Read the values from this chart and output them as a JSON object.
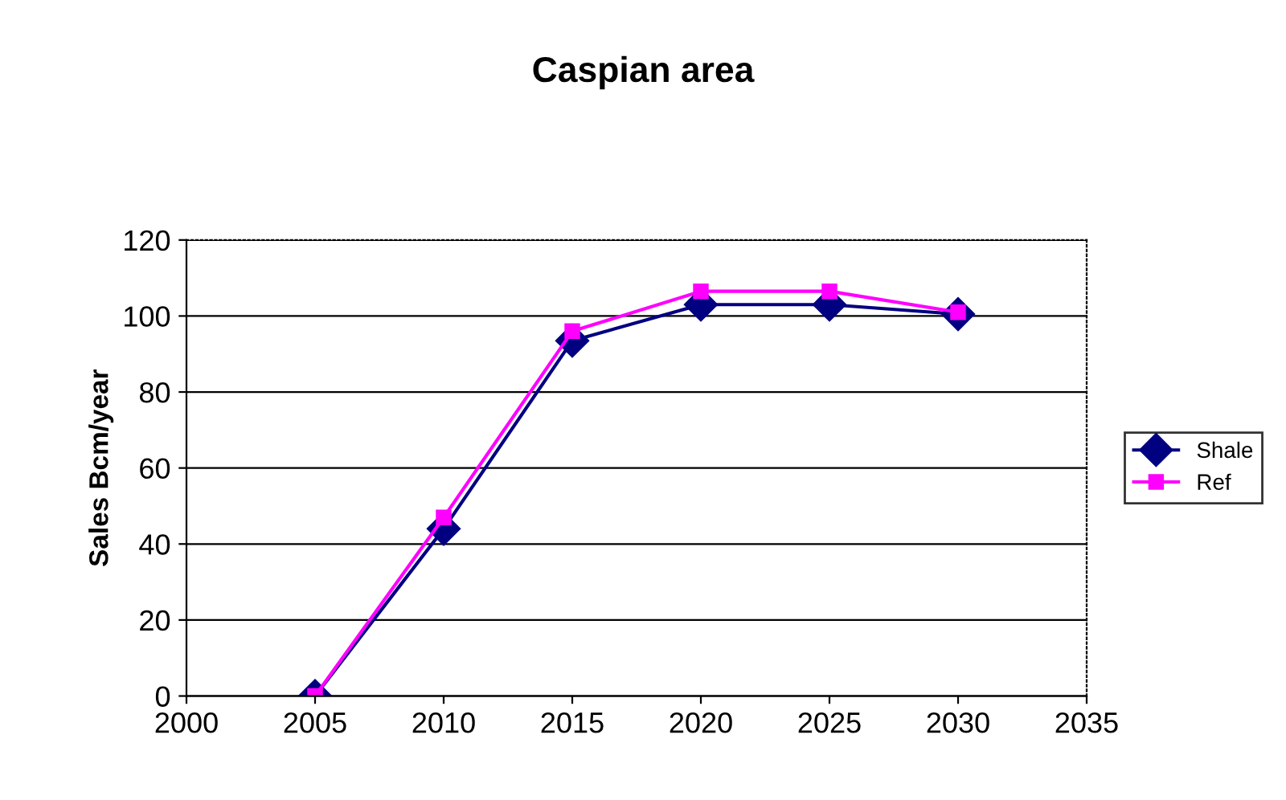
{
  "chart_data": {
    "type": "line",
    "title": "Caspian area",
    "ylabel": "Sales Bcm/year",
    "x": [
      2005,
      2010,
      2015,
      2020,
      2025,
      2030
    ],
    "series": [
      {
        "name": "Shale",
        "color": "#000080",
        "marker": "diamond",
        "values": [
          0,
          44,
          93.5,
          103,
          103,
          100.5
        ]
      },
      {
        "name": "Ref",
        "color": "#ff00ff",
        "marker": "square",
        "values": [
          0,
          47,
          96,
          106.5,
          106.5,
          101
        ]
      }
    ],
    "xlim": [
      2000,
      2035
    ],
    "xticks": [
      2000,
      2005,
      2010,
      2015,
      2020,
      2025,
      2030,
      2035
    ],
    "ylim": [
      0,
      120
    ],
    "yticks": [
      0,
      20,
      40,
      60,
      80,
      100,
      120
    ],
    "grid": "y",
    "legend": "right",
    "line_style": "solid"
  }
}
